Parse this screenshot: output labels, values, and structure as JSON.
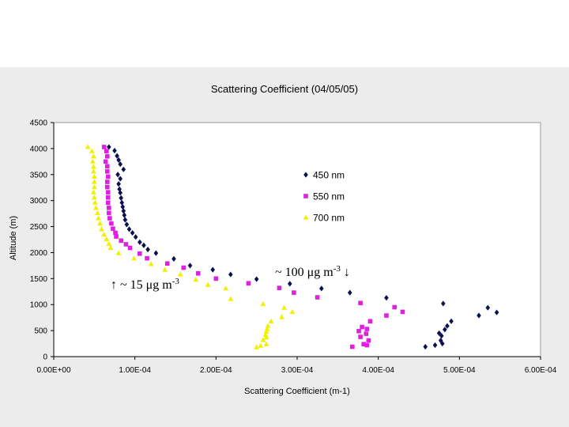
{
  "chart_data": {
    "type": "scatter",
    "title": "Scattering Coefficient (04/05/05)",
    "xlabel": "Scattering Coefficient (m-1)",
    "ylabel": "Altitude (m)",
    "xlim": [
      0,
      0.0006
    ],
    "ylim": [
      0,
      4500
    ],
    "xticks": [
      "0.00E+00",
      "1.00E-04",
      "2.00E-04",
      "3.00E-04",
      "4.00E-04",
      "5.00E-04",
      "6.00E-04"
    ],
    "yticks": [
      "0",
      "500",
      "1000",
      "1500",
      "2000",
      "2500",
      "3000",
      "3500",
      "4000",
      "4500"
    ],
    "legend_position": "right",
    "series": [
      {
        "name": "450 nm",
        "marker": "diamond",
        "color": "#0a1150",
        "points": [
          [
            6.8e-05,
            4030
          ],
          [
            7.5e-05,
            3960
          ],
          [
            7.8e-05,
            3860
          ],
          [
            8e-05,
            3780
          ],
          [
            8.2e-05,
            3700
          ],
          [
            8.6e-05,
            3600
          ],
          [
            7.9e-05,
            3500
          ],
          [
            8.2e-05,
            3420
          ],
          [
            8e-05,
            3320
          ],
          [
            8.1e-05,
            3220
          ],
          [
            8.2e-05,
            3150
          ],
          [
            8.3e-05,
            3050
          ],
          [
            8.4e-05,
            2960
          ],
          [
            8.5e-05,
            2880
          ],
          [
            8.6e-05,
            2800
          ],
          [
            8.7e-05,
            2720
          ],
          [
            8.8e-05,
            2630
          ],
          [
            9e-05,
            2540
          ],
          [
            9.3e-05,
            2450
          ],
          [
            9.7e-05,
            2380
          ],
          [
            0.000101,
            2300
          ],
          [
            0.000106,
            2200
          ],
          [
            0.000111,
            2140
          ],
          [
            0.000116,
            2060
          ],
          [
            0.000126,
            1990
          ],
          [
            0.000148,
            1880
          ],
          [
            0.000168,
            1750
          ],
          [
            0.000196,
            1670
          ],
          [
            0.000218,
            1580
          ],
          [
            0.00025,
            1490
          ],
          [
            0.000291,
            1400
          ],
          [
            0.00033,
            1310
          ],
          [
            0.000365,
            1230
          ],
          [
            0.00041,
            1130
          ],
          [
            0.00048,
            1020
          ],
          [
            0.000535,
            940
          ],
          [
            0.000546,
            850
          ],
          [
            0.000524,
            790
          ],
          [
            0.00049,
            680
          ],
          [
            0.000485,
            590
          ],
          [
            0.000482,
            520
          ],
          [
            0.000475,
            450
          ],
          [
            0.000478,
            400
          ],
          [
            0.000477,
            310
          ],
          [
            0.000479,
            250
          ],
          [
            0.00047,
            220
          ],
          [
            0.000458,
            190
          ]
        ]
      },
      {
        "name": "550 nm",
        "marker": "square",
        "color": "#e020e0",
        "points": [
          [
            6.2e-05,
            4030
          ],
          [
            6.5e-05,
            3950
          ],
          [
            6.6e-05,
            3850
          ],
          [
            6.4e-05,
            3750
          ],
          [
            6.6e-05,
            3660
          ],
          [
            6.6e-05,
            3560
          ],
          [
            6.7e-05,
            3460
          ],
          [
            6.6e-05,
            3360
          ],
          [
            6.6e-05,
            3260
          ],
          [
            6.7e-05,
            3160
          ],
          [
            6.7e-05,
            3060
          ],
          [
            6.7e-05,
            2960
          ],
          [
            6.8e-05,
            2860
          ],
          [
            6.8e-05,
            2760
          ],
          [
            6.9e-05,
            2660
          ],
          [
            7.1e-05,
            2560
          ],
          [
            7.3e-05,
            2460
          ],
          [
            7.6e-05,
            2380
          ],
          [
            7.7e-05,
            2310
          ],
          [
            8.3e-05,
            2230
          ],
          [
            8.9e-05,
            2160
          ],
          [
            9.4e-05,
            2090
          ],
          [
            0.000106,
            1980
          ],
          [
            0.000115,
            1890
          ],
          [
            0.00014,
            1790
          ],
          [
            0.00016,
            1710
          ],
          [
            0.000178,
            1600
          ],
          [
            0.0002,
            1500
          ],
          [
            0.00024,
            1410
          ],
          [
            0.000278,
            1320
          ],
          [
            0.000296,
            1230
          ],
          [
            0.000325,
            1140
          ],
          [
            0.000378,
            1030
          ],
          [
            0.00042,
            950
          ],
          [
            0.00043,
            860
          ],
          [
            0.00041,
            790
          ],
          [
            0.00039,
            680
          ],
          [
            0.00038,
            570
          ],
          [
            0.000386,
            530
          ],
          [
            0.000376,
            490
          ],
          [
            0.000385,
            440
          ],
          [
            0.000378,
            380
          ],
          [
            0.000388,
            310
          ],
          [
            0.000382,
            240
          ],
          [
            0.000386,
            220
          ],
          [
            0.000368,
            190
          ]
        ]
      },
      {
        "name": "700 nm",
        "marker": "triangle",
        "color": "#f0f000",
        "points": [
          [
            4.2e-05,
            4030
          ],
          [
            4.7e-05,
            3950
          ],
          [
            4.9e-05,
            3850
          ],
          [
            4.8e-05,
            3750
          ],
          [
            4.9e-05,
            3650
          ],
          [
            4.9e-05,
            3560
          ],
          [
            5e-05,
            3460
          ],
          [
            5e-05,
            3360
          ],
          [
            5e-05,
            3260
          ],
          [
            4.9e-05,
            3160
          ],
          [
            5e-05,
            3060
          ],
          [
            5.1e-05,
            2960
          ],
          [
            5.2e-05,
            2860
          ],
          [
            5.4e-05,
            2760
          ],
          [
            5.5e-05,
            2660
          ],
          [
            5.7e-05,
            2560
          ],
          [
            5.9e-05,
            2450
          ],
          [
            6.2e-05,
            2350
          ],
          [
            6.5e-05,
            2260
          ],
          [
            6.8e-05,
            2170
          ],
          [
            7e-05,
            2090
          ],
          [
            8e-05,
            1990
          ],
          [
            9.9e-05,
            1890
          ],
          [
            0.00012,
            1780
          ],
          [
            0.000137,
            1670
          ],
          [
            0.000156,
            1580
          ],
          [
            0.000175,
            1480
          ],
          [
            0.00019,
            1380
          ],
          [
            0.000212,
            1310
          ],
          [
            0.000218,
            1110
          ],
          [
            0.000258,
            1010
          ],
          [
            0.000284,
            940
          ],
          [
            0.000294,
            860
          ],
          [
            0.000281,
            760
          ],
          [
            0.000268,
            680
          ],
          [
            0.000264,
            590
          ],
          [
            0.000263,
            530
          ],
          [
            0.000262,
            480
          ],
          [
            0.000261,
            420
          ],
          [
            0.000262,
            370
          ],
          [
            0.000258,
            320
          ],
          [
            0.000262,
            240
          ],
          [
            0.000255,
            210
          ],
          [
            0.00025,
            180
          ]
        ]
      }
    ],
    "annotations": [
      {
        "id": "ann-100",
        "text": "~ 100 μg m-3 ↓"
      },
      {
        "id": "ann-15",
        "text": "↑ ~ 15 μg m-3"
      }
    ]
  }
}
